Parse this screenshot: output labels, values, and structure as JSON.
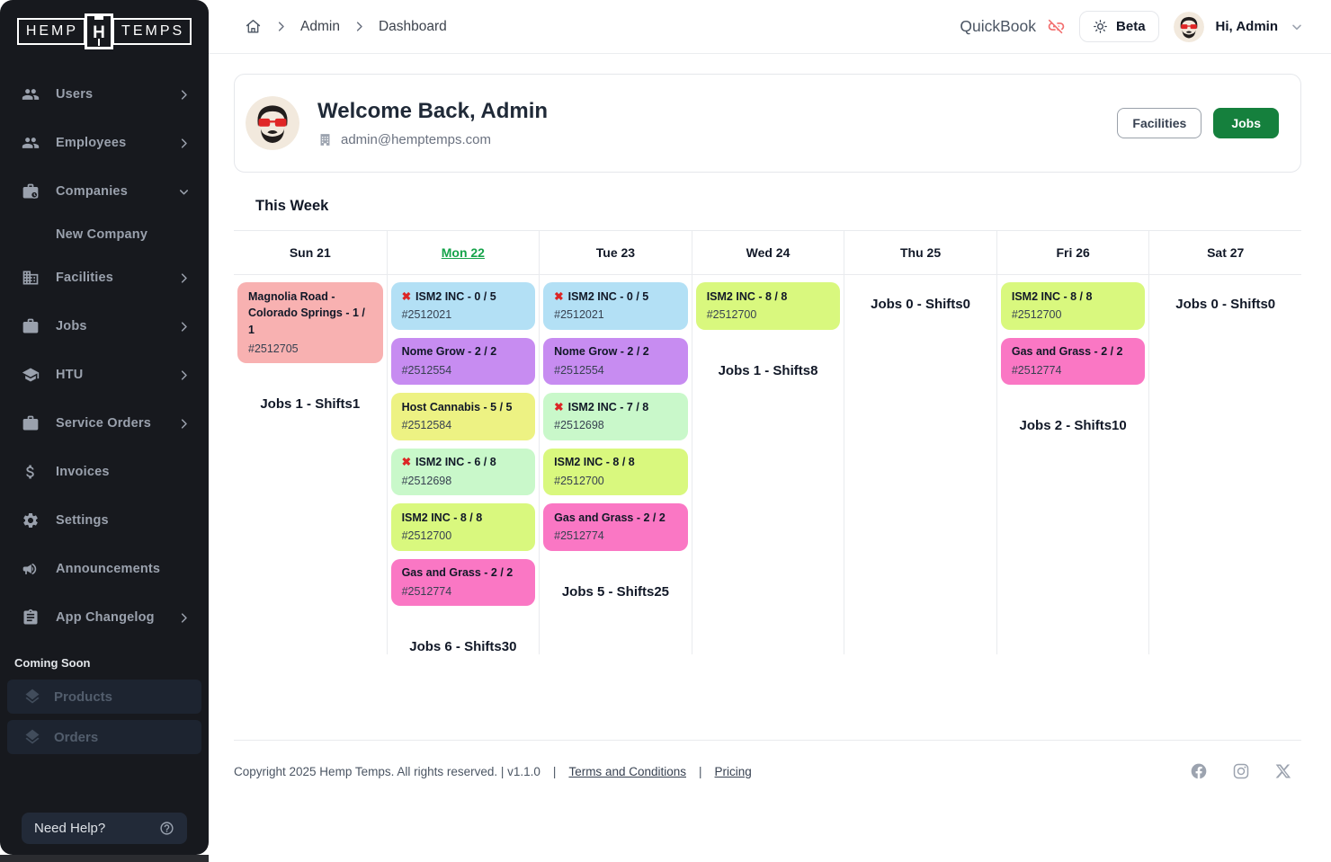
{
  "sidebar": {
    "logo": {
      "left": "HEMP",
      "right": "TEMPS",
      "emblem": "H"
    },
    "items": [
      {
        "label": "Users",
        "icon": "users-icon",
        "chevron": "right"
      },
      {
        "label": "Employees",
        "icon": "employees-icon",
        "chevron": "right"
      },
      {
        "label": "Companies",
        "icon": "companies-icon",
        "chevron": "down"
      },
      {
        "label": "New Company",
        "type": "sub"
      },
      {
        "label": "Facilities",
        "icon": "facilities-icon",
        "chevron": "right"
      },
      {
        "label": "Jobs",
        "icon": "jobs-icon",
        "chevron": "right"
      },
      {
        "label": "HTU",
        "icon": "htu-icon",
        "chevron": "right"
      },
      {
        "label": "Service Orders",
        "icon": "service-orders-icon",
        "chevron": "right"
      },
      {
        "label": "Invoices",
        "icon": "invoices-icon"
      },
      {
        "label": "Settings",
        "icon": "settings-icon"
      },
      {
        "label": "Announcements",
        "icon": "announcements-icon"
      },
      {
        "label": "App Changelog",
        "icon": "app-changelog-icon",
        "chevron": "right"
      }
    ],
    "coming_soon_label": "Coming Soon",
    "coming_soon_items": [
      {
        "label": "Products",
        "icon": "layers-icon"
      },
      {
        "label": "Orders",
        "icon": "layers-icon"
      }
    ],
    "help_label": "Need Help?"
  },
  "header": {
    "breadcrumb": [
      "Admin",
      "Dashboard"
    ],
    "quickbook_label": "QuickBook",
    "beta_label": "Beta",
    "greeting": "Hi, Admin"
  },
  "welcome": {
    "title": "Welcome Back, Admin",
    "email": "admin@hemptemps.com",
    "facilities_button": "Facilities",
    "jobs_button": "Jobs"
  },
  "week": {
    "title": "This Week",
    "days": [
      {
        "label": "Sun 21",
        "active": false,
        "jobs": [
          {
            "title": "Magnolia Road - Colorado Springs - 1 / 1",
            "id": "#2512705",
            "color": "salmon",
            "cancelled": false
          }
        ],
        "summary": "Jobs 1 - Shifts1"
      },
      {
        "label": "Mon 22",
        "active": true,
        "jobs": [
          {
            "title": "ISM2 INC - 0 / 5",
            "id": "#2512021",
            "color": "blue",
            "cancelled": true
          },
          {
            "title": "Nome Grow - 2 / 2",
            "id": "#2512554",
            "color": "purple",
            "cancelled": false
          },
          {
            "title": "Host Cannabis - 5 / 5",
            "id": "#2512584",
            "color": "yellow",
            "cancelled": false
          },
          {
            "title": "ISM2 INC - 6 / 8",
            "id": "#2512698",
            "color": "mint",
            "cancelled": true
          },
          {
            "title": "ISM2 INC - 8 / 8",
            "id": "#2512700",
            "color": "lime",
            "cancelled": false
          },
          {
            "title": "Gas and Grass - 2 / 2",
            "id": "#2512774",
            "color": "pink",
            "cancelled": false
          }
        ],
        "summary": "Jobs 6 - Shifts30"
      },
      {
        "label": "Tue 23",
        "active": false,
        "jobs": [
          {
            "title": "ISM2 INC - 0 / 5",
            "id": "#2512021",
            "color": "blue",
            "cancelled": true
          },
          {
            "title": "Nome Grow - 2 / 2",
            "id": "#2512554",
            "color": "purple",
            "cancelled": false
          },
          {
            "title": "ISM2 INC - 7 / 8",
            "id": "#2512698",
            "color": "mint",
            "cancelled": true
          },
          {
            "title": "ISM2 INC - 8 / 8",
            "id": "#2512700",
            "color": "lime",
            "cancelled": false
          },
          {
            "title": "Gas and Grass - 2 / 2",
            "id": "#2512774",
            "color": "pink",
            "cancelled": false
          }
        ],
        "summary": "Jobs 5 - Shifts25"
      },
      {
        "label": "Wed 24",
        "active": false,
        "jobs": [
          {
            "title": "ISM2 INC - 8 / 8",
            "id": "#2512700",
            "color": "lime",
            "cancelled": false
          }
        ],
        "summary": "Jobs 1 - Shifts8"
      },
      {
        "label": "Thu 25",
        "active": false,
        "jobs": [],
        "summary": "Jobs 0 - Shifts0"
      },
      {
        "label": "Fri 26",
        "active": false,
        "jobs": [
          {
            "title": "ISM2 INC - 8 / 8",
            "id": "#2512700",
            "color": "lime",
            "cancelled": false
          },
          {
            "title": "Gas and Grass - 2 / 2",
            "id": "#2512774",
            "color": "pink",
            "cancelled": false
          }
        ],
        "summary": "Jobs 2 - Shifts10"
      },
      {
        "label": "Sat 27",
        "active": false,
        "jobs": [],
        "summary": "Jobs 0 - Shifts0"
      }
    ]
  },
  "footer": {
    "copyright": "Copyright 2025 Hemp Temps. All rights reserved. | v1.1.0",
    "divider": "|",
    "terms": "Terms and Conditions",
    "pricing": "Pricing",
    "social_icons": [
      "facebook-icon",
      "instagram-icon",
      "x-icon"
    ]
  },
  "glyphs": {
    "cancelled": "✖"
  },
  "colors": {
    "accent_green": "#15803d",
    "active_day_green": "#16a34a",
    "cancelled_red": "#dc2626",
    "cards": {
      "salmon": "#f8b1b1",
      "blue": "#b3e0f5",
      "purple": "#c78cf1",
      "yellow": "#edf283",
      "mint": "#c9f8ca",
      "lime": "#d9f87e",
      "pink": "#fa77c4"
    }
  }
}
